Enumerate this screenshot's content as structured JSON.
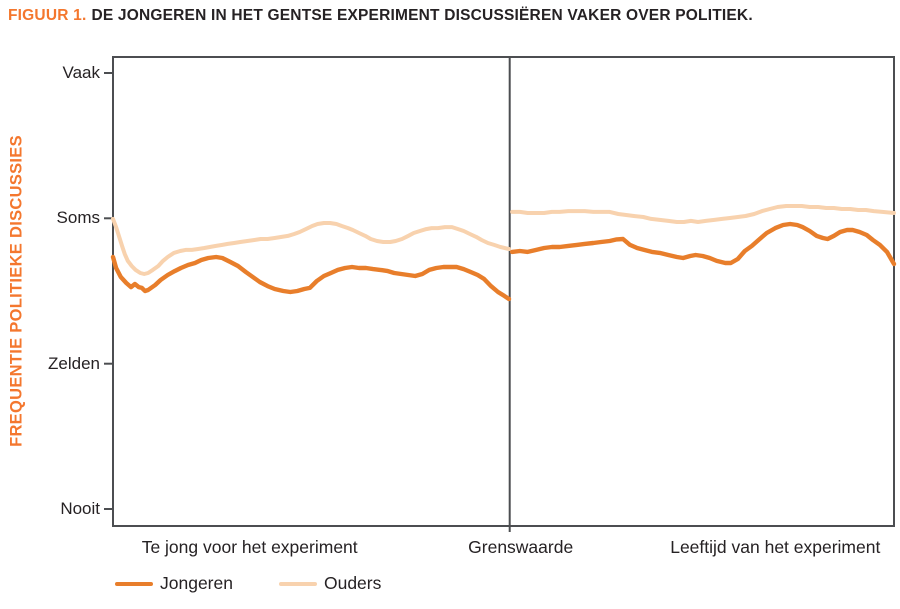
{
  "title": {
    "prefix": "FIGUUR 1.",
    "text": "DE JONGEREN IN HET GENTSE EXPERIMENT DISCUSSIËREN VAKER OVER POLITIEK."
  },
  "colors": {
    "accent": "#F4772E",
    "text": "#262224",
    "frame": "#4C4E51",
    "jongeren_line": "#E87E2B",
    "ouders_line": "#F8D2AE"
  },
  "chart_data": {
    "type": "line",
    "title": "FIGUUR 1. DE JONGEREN IN HET GENTSE EXPERIMENT DISCUSSIËREN VAKER OVER POLITIEK.",
    "ylabel": "FREQUENTIE POLITIEKE DISCUSSIES",
    "xlabel": "",
    "grid": false,
    "legend_position": "bottom-left",
    "ylim": [
      -0.12,
      3.11
    ],
    "y_scale_note": "ordinal: 0=Nooit, 1=Zelden, 2=Soms, 3=Vaak",
    "y_ticks": [
      {
        "label": "Vaak",
        "value": 3
      },
      {
        "label": "Soms",
        "value": 2
      },
      {
        "label": "Zelden",
        "value": 1
      },
      {
        "label": "Nooit",
        "value": 0
      }
    ],
    "x_labels": [
      {
        "label": "Te jong voor het experiment",
        "x": 0.175
      },
      {
        "label": "Grenswaarde",
        "x": 0.522
      },
      {
        "label": "Leeftijd van het experiment",
        "x": 0.848
      }
    ],
    "cutoff_x": 0.508,
    "series": [
      {
        "name": "Jongeren",
        "color": "#E87E2B",
        "width": 4.4,
        "segments": [
          [
            [
              0.0,
              1.734
            ],
            [
              0.004,
              1.658
            ],
            [
              0.01,
              1.596
            ],
            [
              0.017,
              1.555
            ],
            [
              0.023,
              1.527
            ],
            [
              0.028,
              1.548
            ],
            [
              0.033,
              1.527
            ],
            [
              0.037,
              1.521
            ],
            [
              0.041,
              1.5
            ],
            [
              0.045,
              1.507
            ],
            [
              0.054,
              1.541
            ],
            [
              0.061,
              1.576
            ],
            [
              0.07,
              1.61
            ],
            [
              0.079,
              1.637
            ],
            [
              0.087,
              1.658
            ],
            [
              0.096,
              1.679
            ],
            [
              0.105,
              1.693
            ],
            [
              0.113,
              1.713
            ],
            [
              0.122,
              1.727
            ],
            [
              0.132,
              1.734
            ],
            [
              0.14,
              1.727
            ],
            [
              0.15,
              1.7
            ],
            [
              0.16,
              1.672
            ],
            [
              0.17,
              1.631
            ],
            [
              0.179,
              1.596
            ],
            [
              0.188,
              1.562
            ],
            [
              0.198,
              1.534
            ],
            [
              0.207,
              1.514
            ],
            [
              0.218,
              1.5
            ],
            [
              0.227,
              1.493
            ],
            [
              0.236,
              1.5
            ],
            [
              0.245,
              1.514
            ],
            [
              0.252,
              1.521
            ],
            [
              0.261,
              1.569
            ],
            [
              0.27,
              1.603
            ],
            [
              0.279,
              1.624
            ],
            [
              0.288,
              1.645
            ],
            [
              0.297,
              1.658
            ],
            [
              0.306,
              1.665
            ],
            [
              0.315,
              1.658
            ],
            [
              0.324,
              1.658
            ],
            [
              0.333,
              1.651
            ],
            [
              0.342,
              1.645
            ],
            [
              0.351,
              1.638
            ],
            [
              0.36,
              1.624
            ],
            [
              0.369,
              1.617
            ],
            [
              0.378,
              1.61
            ],
            [
              0.387,
              1.603
            ],
            [
              0.396,
              1.617
            ],
            [
              0.405,
              1.645
            ],
            [
              0.414,
              1.658
            ],
            [
              0.423,
              1.665
            ],
            [
              0.431,
              1.665
            ],
            [
              0.44,
              1.665
            ],
            [
              0.449,
              1.651
            ],
            [
              0.458,
              1.631
            ],
            [
              0.467,
              1.61
            ],
            [
              0.475,
              1.583
            ],
            [
              0.484,
              1.534
            ],
            [
              0.493,
              1.493
            ],
            [
              0.501,
              1.466
            ],
            [
              0.507,
              1.445
            ]
          ],
          [
            [
              0.511,
              1.769
            ],
            [
              0.521,
              1.775
            ],
            [
              0.531,
              1.769
            ],
            [
              0.542,
              1.783
            ],
            [
              0.552,
              1.796
            ],
            [
              0.562,
              1.803
            ],
            [
              0.572,
              1.803
            ],
            [
              0.583,
              1.81
            ],
            [
              0.594,
              1.817
            ],
            [
              0.604,
              1.824
            ],
            [
              0.615,
              1.83
            ],
            [
              0.625,
              1.837
            ],
            [
              0.636,
              1.844
            ],
            [
              0.645,
              1.855
            ],
            [
              0.653,
              1.858
            ],
            [
              0.662,
              1.817
            ],
            [
              0.671,
              1.796
            ],
            [
              0.68,
              1.783
            ],
            [
              0.69,
              1.769
            ],
            [
              0.7,
              1.762
            ],
            [
              0.711,
              1.748
            ],
            [
              0.722,
              1.734
            ],
            [
              0.73,
              1.727
            ],
            [
              0.739,
              1.741
            ],
            [
              0.746,
              1.748
            ],
            [
              0.755,
              1.741
            ],
            [
              0.764,
              1.727
            ],
            [
              0.773,
              1.707
            ],
            [
              0.784,
              1.693
            ],
            [
              0.791,
              1.693
            ],
            [
              0.8,
              1.72
            ],
            [
              0.809,
              1.775
            ],
            [
              0.818,
              1.81
            ],
            [
              0.828,
              1.858
            ],
            [
              0.837,
              1.899
            ],
            [
              0.848,
              1.933
            ],
            [
              0.858,
              1.954
            ],
            [
              0.867,
              1.961
            ],
            [
              0.876,
              1.954
            ],
            [
              0.883,
              1.94
            ],
            [
              0.892,
              1.913
            ],
            [
              0.901,
              1.879
            ],
            [
              0.909,
              1.865
            ],
            [
              0.915,
              1.858
            ],
            [
              0.923,
              1.879
            ],
            [
              0.931,
              1.906
            ],
            [
              0.94,
              1.92
            ],
            [
              0.947,
              1.92
            ],
            [
              0.956,
              1.906
            ],
            [
              0.965,
              1.885
            ],
            [
              0.973,
              1.851
            ],
            [
              0.982,
              1.817
            ],
            [
              0.991,
              1.769
            ],
            [
              1.0,
              1.686
            ]
          ]
        ]
      },
      {
        "name": "Ouders",
        "color": "#F8D2AE",
        "width": 4.0,
        "segments": [
          [
            [
              0.0,
              1.996
            ],
            [
              0.004,
              1.94
            ],
            [
              0.008,
              1.872
            ],
            [
              0.012,
              1.803
            ],
            [
              0.015,
              1.755
            ],
            [
              0.019,
              1.707
            ],
            [
              0.024,
              1.672
            ],
            [
              0.029,
              1.645
            ],
            [
              0.035,
              1.624
            ],
            [
              0.04,
              1.617
            ],
            [
              0.045,
              1.624
            ],
            [
              0.051,
              1.645
            ],
            [
              0.058,
              1.672
            ],
            [
              0.064,
              1.707
            ],
            [
              0.07,
              1.734
            ],
            [
              0.078,
              1.762
            ],
            [
              0.086,
              1.775
            ],
            [
              0.093,
              1.783
            ],
            [
              0.101,
              1.783
            ],
            [
              0.109,
              1.789
            ],
            [
              0.117,
              1.796
            ],
            [
              0.124,
              1.803
            ],
            [
              0.132,
              1.81
            ],
            [
              0.14,
              1.817
            ],
            [
              0.147,
              1.824
            ],
            [
              0.155,
              1.83
            ],
            [
              0.163,
              1.837
            ],
            [
              0.172,
              1.844
            ],
            [
              0.181,
              1.851
            ],
            [
              0.189,
              1.858
            ],
            [
              0.198,
              1.858
            ],
            [
              0.207,
              1.865
            ],
            [
              0.216,
              1.872
            ],
            [
              0.224,
              1.879
            ],
            [
              0.232,
              1.892
            ],
            [
              0.239,
              1.906
            ],
            [
              0.247,
              1.926
            ],
            [
              0.255,
              1.947
            ],
            [
              0.262,
              1.961
            ],
            [
              0.27,
              1.968
            ],
            [
              0.278,
              1.968
            ],
            [
              0.286,
              1.961
            ],
            [
              0.293,
              1.947
            ],
            [
              0.301,
              1.933
            ],
            [
              0.307,
              1.92
            ],
            [
              0.315,
              1.899
            ],
            [
              0.323,
              1.879
            ],
            [
              0.33,
              1.858
            ],
            [
              0.338,
              1.844
            ],
            [
              0.346,
              1.837
            ],
            [
              0.355,
              1.837
            ],
            [
              0.362,
              1.844
            ],
            [
              0.37,
              1.858
            ],
            [
              0.378,
              1.879
            ],
            [
              0.385,
              1.899
            ],
            [
              0.393,
              1.913
            ],
            [
              0.401,
              1.926
            ],
            [
              0.408,
              1.933
            ],
            [
              0.416,
              1.933
            ],
            [
              0.425,
              1.94
            ],
            [
              0.434,
              1.94
            ],
            [
              0.442,
              1.926
            ],
            [
              0.449,
              1.913
            ],
            [
              0.457,
              1.892
            ],
            [
              0.465,
              1.872
            ],
            [
              0.472,
              1.851
            ],
            [
              0.48,
              1.83
            ],
            [
              0.488,
              1.817
            ],
            [
              0.496,
              1.803
            ],
            [
              0.507,
              1.789
            ]
          ],
          [
            [
              0.511,
              2.044
            ],
            [
              0.521,
              2.044
            ],
            [
              0.531,
              2.037
            ],
            [
              0.542,
              2.037
            ],
            [
              0.552,
              2.037
            ],
            [
              0.562,
              2.044
            ],
            [
              0.572,
              2.044
            ],
            [
              0.583,
              2.05
            ],
            [
              0.594,
              2.05
            ],
            [
              0.604,
              2.05
            ],
            [
              0.615,
              2.044
            ],
            [
              0.625,
              2.044
            ],
            [
              0.636,
              2.044
            ],
            [
              0.647,
              2.03
            ],
            [
              0.657,
              2.023
            ],
            [
              0.667,
              2.016
            ],
            [
              0.679,
              2.009
            ],
            [
              0.689,
              1.996
            ],
            [
              0.7,
              1.989
            ],
            [
              0.711,
              1.982
            ],
            [
              0.722,
              1.975
            ],
            [
              0.731,
              1.975
            ],
            [
              0.74,
              1.982
            ],
            [
              0.749,
              1.975
            ],
            [
              0.759,
              1.982
            ],
            [
              0.77,
              1.989
            ],
            [
              0.78,
              1.996
            ],
            [
              0.79,
              2.002
            ],
            [
              0.8,
              2.009
            ],
            [
              0.81,
              2.016
            ],
            [
              0.821,
              2.03
            ],
            [
              0.831,
              2.05
            ],
            [
              0.841,
              2.064
            ],
            [
              0.851,
              2.078
            ],
            [
              0.862,
              2.085
            ],
            [
              0.872,
              2.085
            ],
            [
              0.882,
              2.085
            ],
            [
              0.892,
              2.078
            ],
            [
              0.903,
              2.078
            ],
            [
              0.913,
              2.071
            ],
            [
              0.923,
              2.071
            ],
            [
              0.933,
              2.064
            ],
            [
              0.944,
              2.064
            ],
            [
              0.954,
              2.057
            ],
            [
              0.964,
              2.057
            ],
            [
              0.974,
              2.05
            ],
            [
              0.985,
              2.044
            ],
            [
              1.0,
              2.037
            ]
          ]
        ]
      }
    ]
  }
}
